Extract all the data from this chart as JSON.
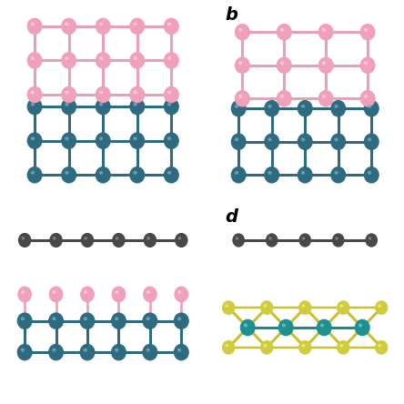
{
  "bg": "#ffffff",
  "pink_atom": "#F0A0B8",
  "pink_bond": "#E8A0B8",
  "teal_atom": "#2E6B80",
  "teal_bond": "#2E6B80",
  "dark_atom": "#484848",
  "dark_bond": "#484848",
  "yellow_atom": "#D0CC40",
  "yellow_bond": "#C8C030",
  "teal2_atom": "#1E9090",
  "teal2_bond": "#1E8888",
  "label_b": "b",
  "label_d": "d",
  "label_fontsize": 14,
  "label_fontstyle": "italic",
  "label_fontweight": "bold"
}
